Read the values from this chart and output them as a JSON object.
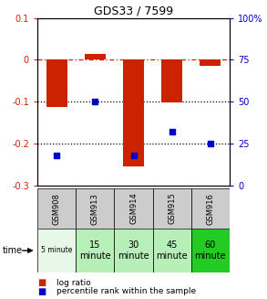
{
  "title": "GDS33 / 7599",
  "samples": [
    "GSM908",
    "GSM913",
    "GSM914",
    "GSM915",
    "GSM916"
  ],
  "time_labels_row1": [
    "5 minute",
    "15",
    "30",
    "45",
    "60"
  ],
  "time_labels_row2": [
    "",
    "minute",
    "minute",
    "minute",
    "minute"
  ],
  "log_ratios": [
    -0.112,
    0.015,
    -0.255,
    -0.101,
    -0.015
  ],
  "percentile_ranks": [
    18,
    50,
    18,
    32,
    25
  ],
  "bar_color": "#cc2200",
  "dot_color": "#0000cc",
  "ylim_left": [
    -0.3,
    0.1
  ],
  "ylim_right": [
    0,
    100
  ],
  "yticks_left": [
    0.1,
    0.0,
    -0.1,
    -0.2,
    -0.3
  ],
  "yticks_right": [
    100,
    75,
    50,
    25,
    0
  ],
  "time_colors": [
    "#e8f8e8",
    "#b8eeb8",
    "#b8eeb8",
    "#b8eeb8",
    "#22cc22"
  ],
  "sample_bg_color": "#cccccc",
  "bar_width": 0.55,
  "bg_color": "#ffffff",
  "legend_bar_color": "#cc2200",
  "legend_dot_color": "#0000cc"
}
